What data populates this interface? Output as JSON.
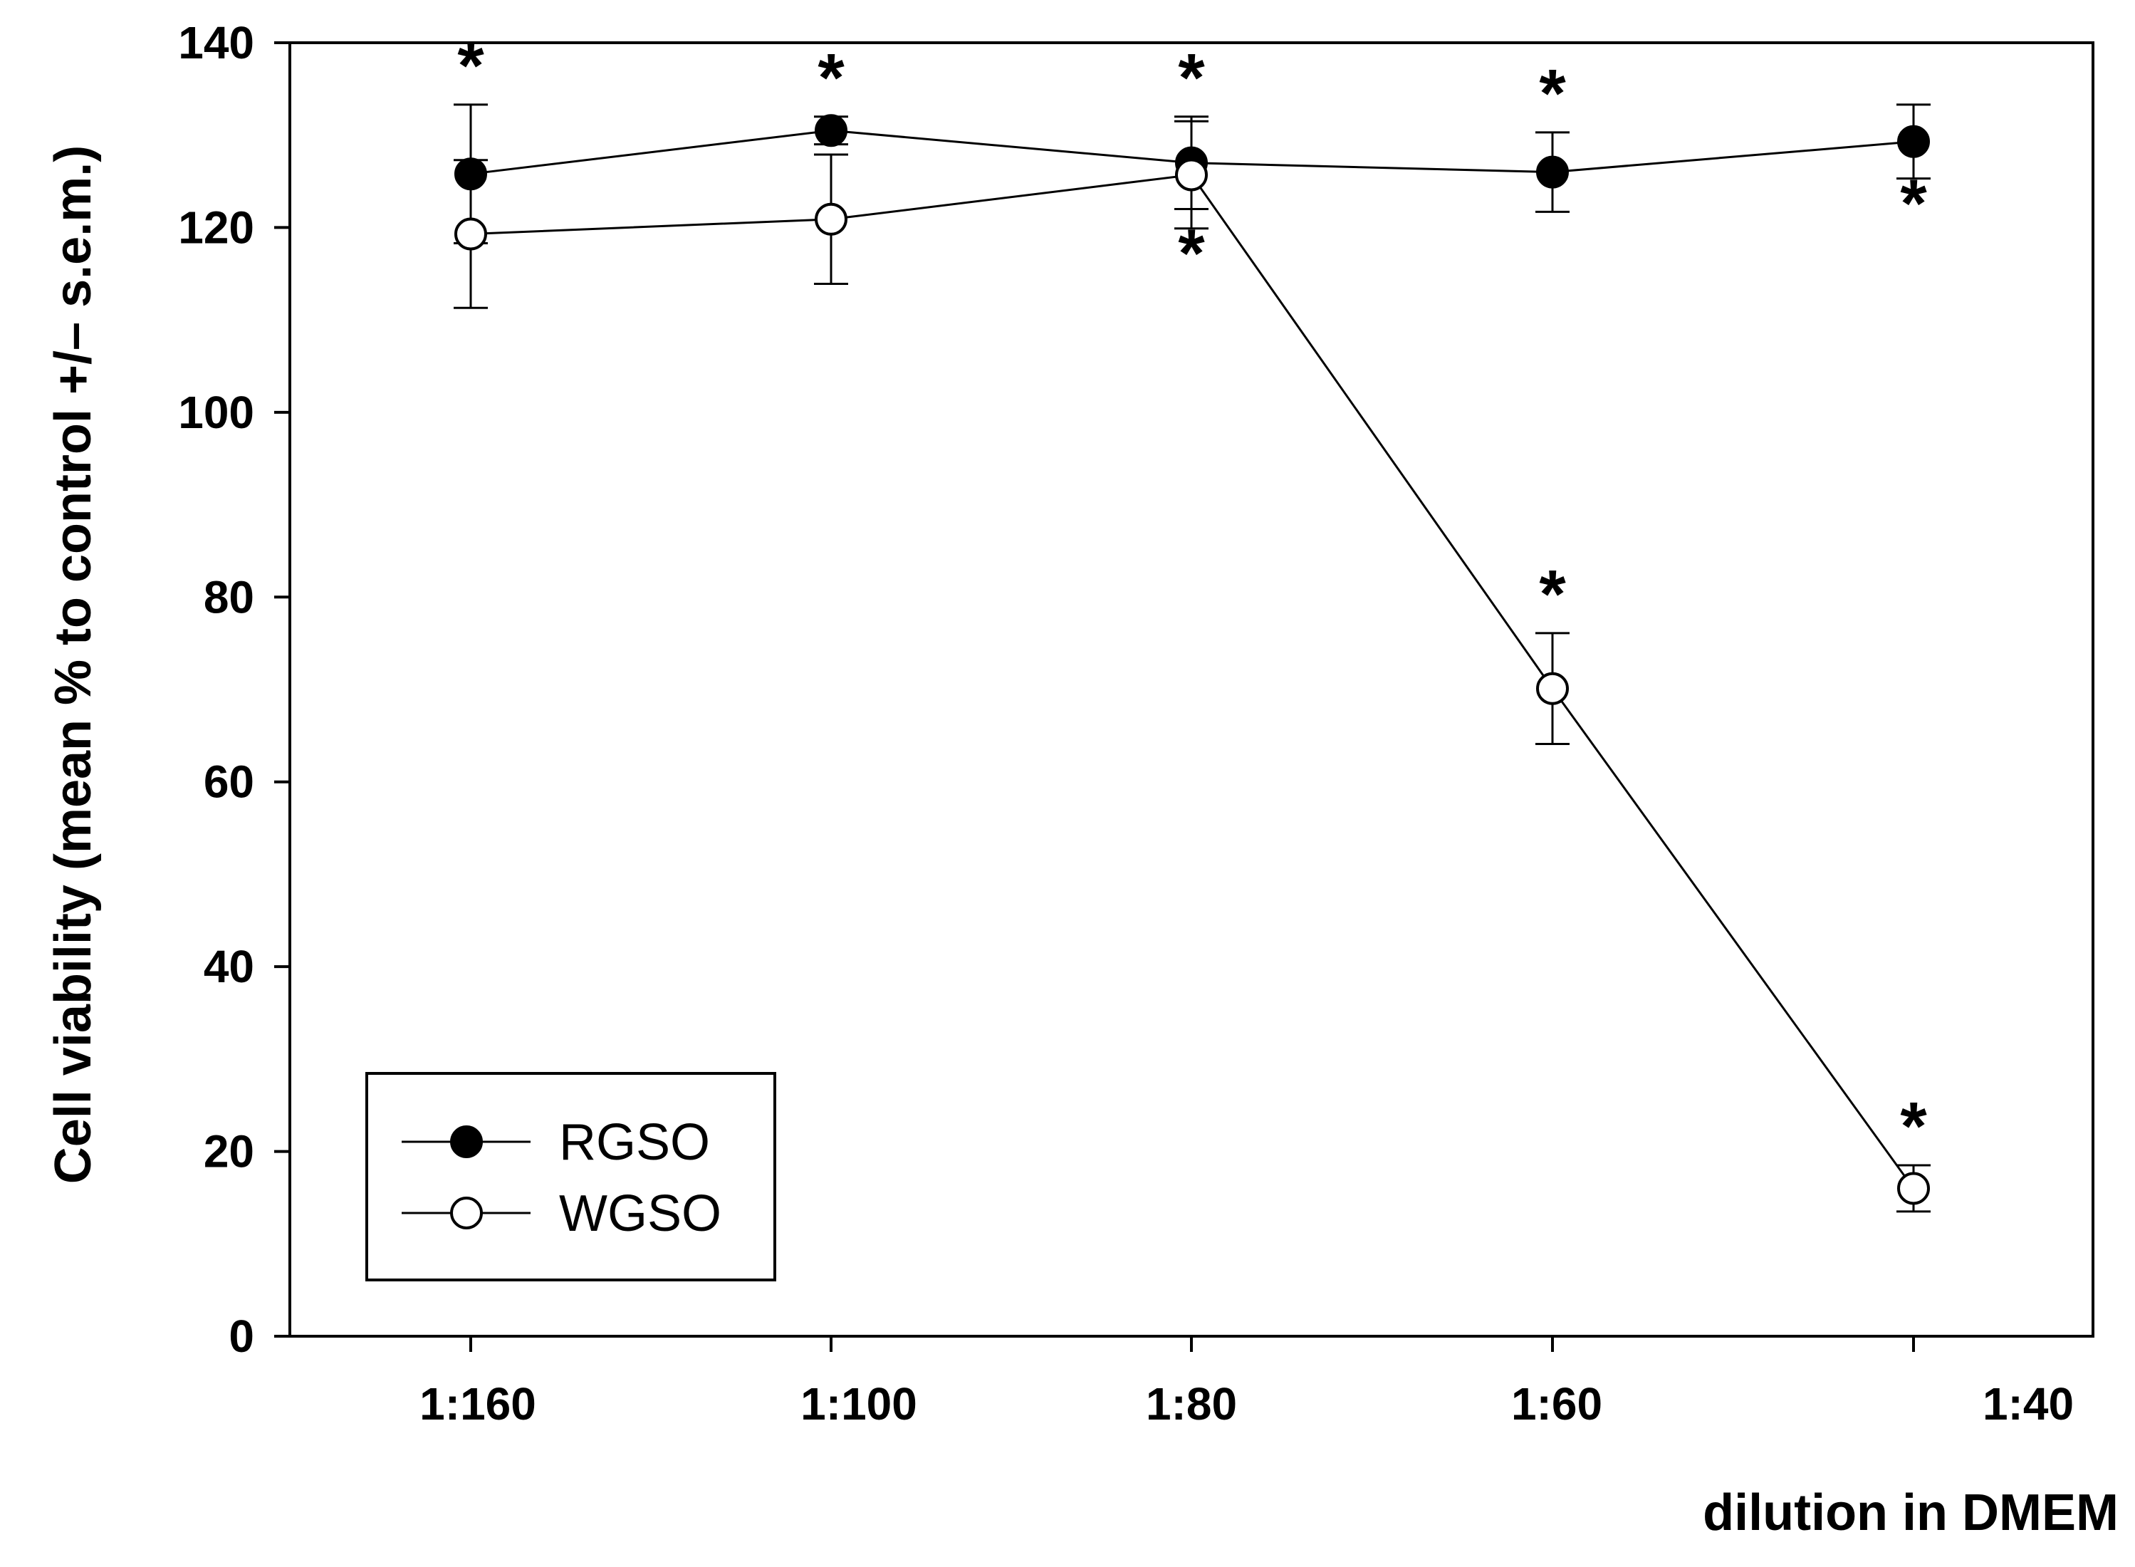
{
  "chart_data": {
    "type": "line",
    "title": "",
    "xlabel": "dilution in DMEM",
    "ylabel": "Cell viability (mean % to control +/– s.e.m.)",
    "ylim": [
      0,
      140
    ],
    "yticks": [
      0,
      20,
      40,
      60,
      80,
      100,
      120,
      140
    ],
    "categories": [
      "1:160",
      "1:100",
      "1:80",
      "1:60",
      "1:40"
    ],
    "legend_position": "bottom-left",
    "series": [
      {
        "name": "RGSO",
        "marker": "filled-circle",
        "values": [
          125.8,
          130.5,
          127.0,
          126.0,
          129.3
        ],
        "errors": [
          7.5,
          1.5,
          5.0,
          4.3,
          4.0
        ],
        "significance": [
          "above",
          "above",
          "above",
          "above",
          "below"
        ]
      },
      {
        "name": "WGSO",
        "marker": "open-circle",
        "values": [
          119.3,
          120.9,
          125.7,
          70.1,
          16.0
        ],
        "errors": [
          8.0,
          7.0,
          5.8,
          6.0,
          2.5
        ],
        "significance": [
          "none",
          "none",
          "below",
          "above",
          "above"
        ]
      }
    ],
    "significance_mark": "*"
  }
}
